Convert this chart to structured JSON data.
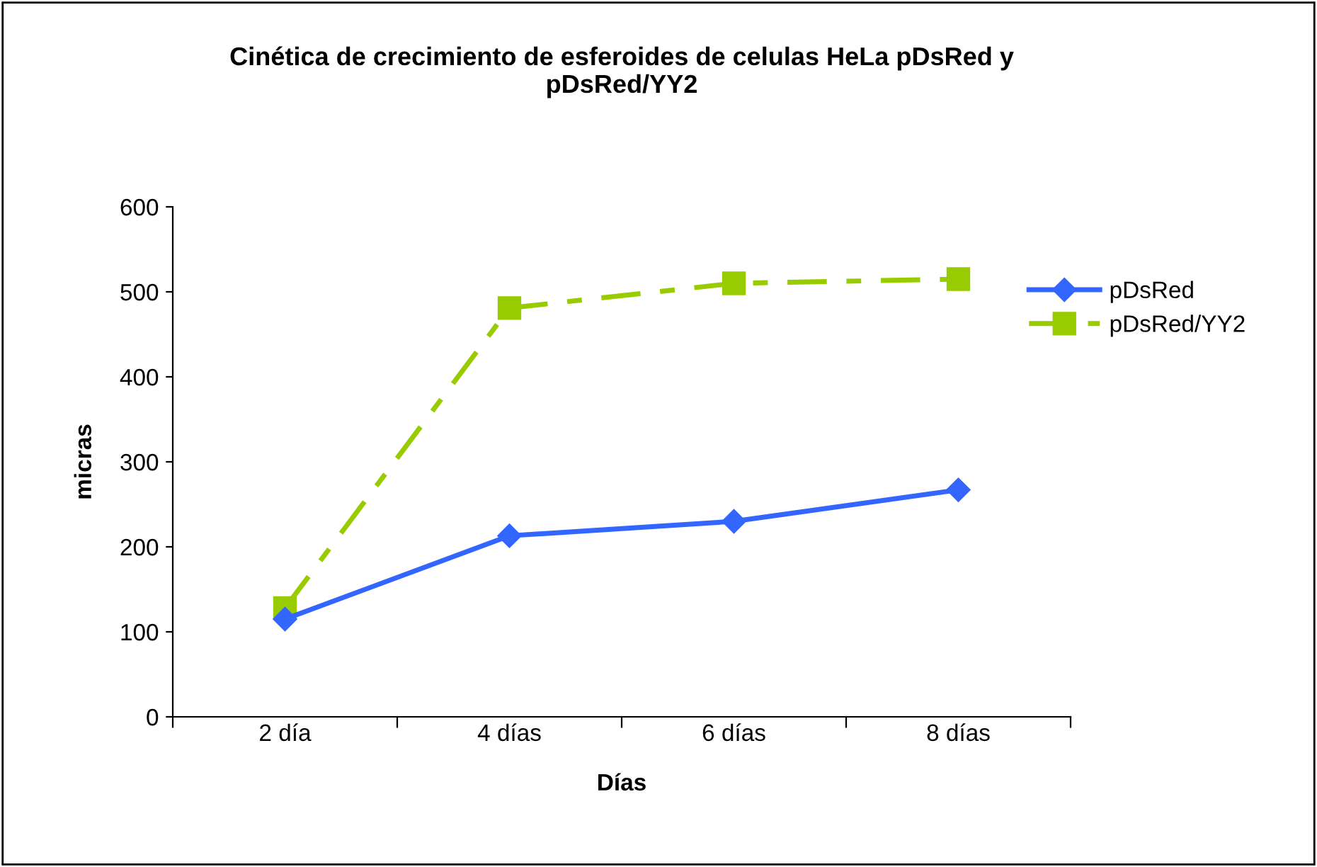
{
  "chart_data": {
    "type": "line",
    "title": "Cinética de crecimiento de esferoides de celulas HeLa pDsRed y\npDsRed/YY2",
    "xlabel": "Días",
    "ylabel": "micras",
    "categories": [
      "2 día",
      "4 días",
      "6 días",
      "8 días"
    ],
    "series": [
      {
        "name": "pDsRed",
        "color": "#3366ff",
        "values": [
          115,
          213,
          230,
          267
        ],
        "marker": "diamond",
        "line_style": "solid"
      },
      {
        "name": "pDsRed/YY2",
        "color": "#99cc00",
        "values": [
          128,
          481,
          510,
          515
        ],
        "marker": "square",
        "line_style": "dashed"
      }
    ],
    "ylim": [
      0,
      600
    ],
    "yticks": [
      0,
      100,
      200,
      300,
      400,
      500,
      600
    ],
    "grid": false,
    "legend": "right"
  }
}
